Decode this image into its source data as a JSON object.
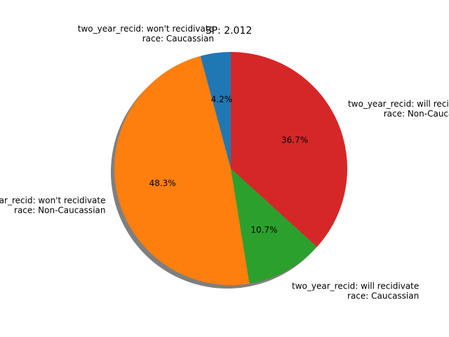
{
  "chart_data": {
    "type": "pie",
    "title": "SP: 2.012",
    "start_angle_deg": 90,
    "direction": "counterclockwise",
    "shadow": true,
    "slices": [
      {
        "label_line1": "two_year_recid: won't recidivate",
        "label_line2": "race: Caucassian",
        "value": 4.2,
        "pct_text": "4.2%",
        "color": "#1f77b4"
      },
      {
        "label_line1": "two_year_recid: won't recidivate",
        "label_line2": "race: Non-Caucassian",
        "value": 48.3,
        "pct_text": "48.3%",
        "color": "#ff7f0e"
      },
      {
        "label_line1": "two_year_recid: will recidivate",
        "label_line2": "race: Caucassian",
        "value": 10.7,
        "pct_text": "10.7%",
        "color": "#2ca02c"
      },
      {
        "label_line1": "two_year_recid: will recidivate",
        "label_line2": "race: Non-Caucassian",
        "value": 36.7,
        "pct_text": "36.7%",
        "color": "#d62728"
      }
    ]
  }
}
